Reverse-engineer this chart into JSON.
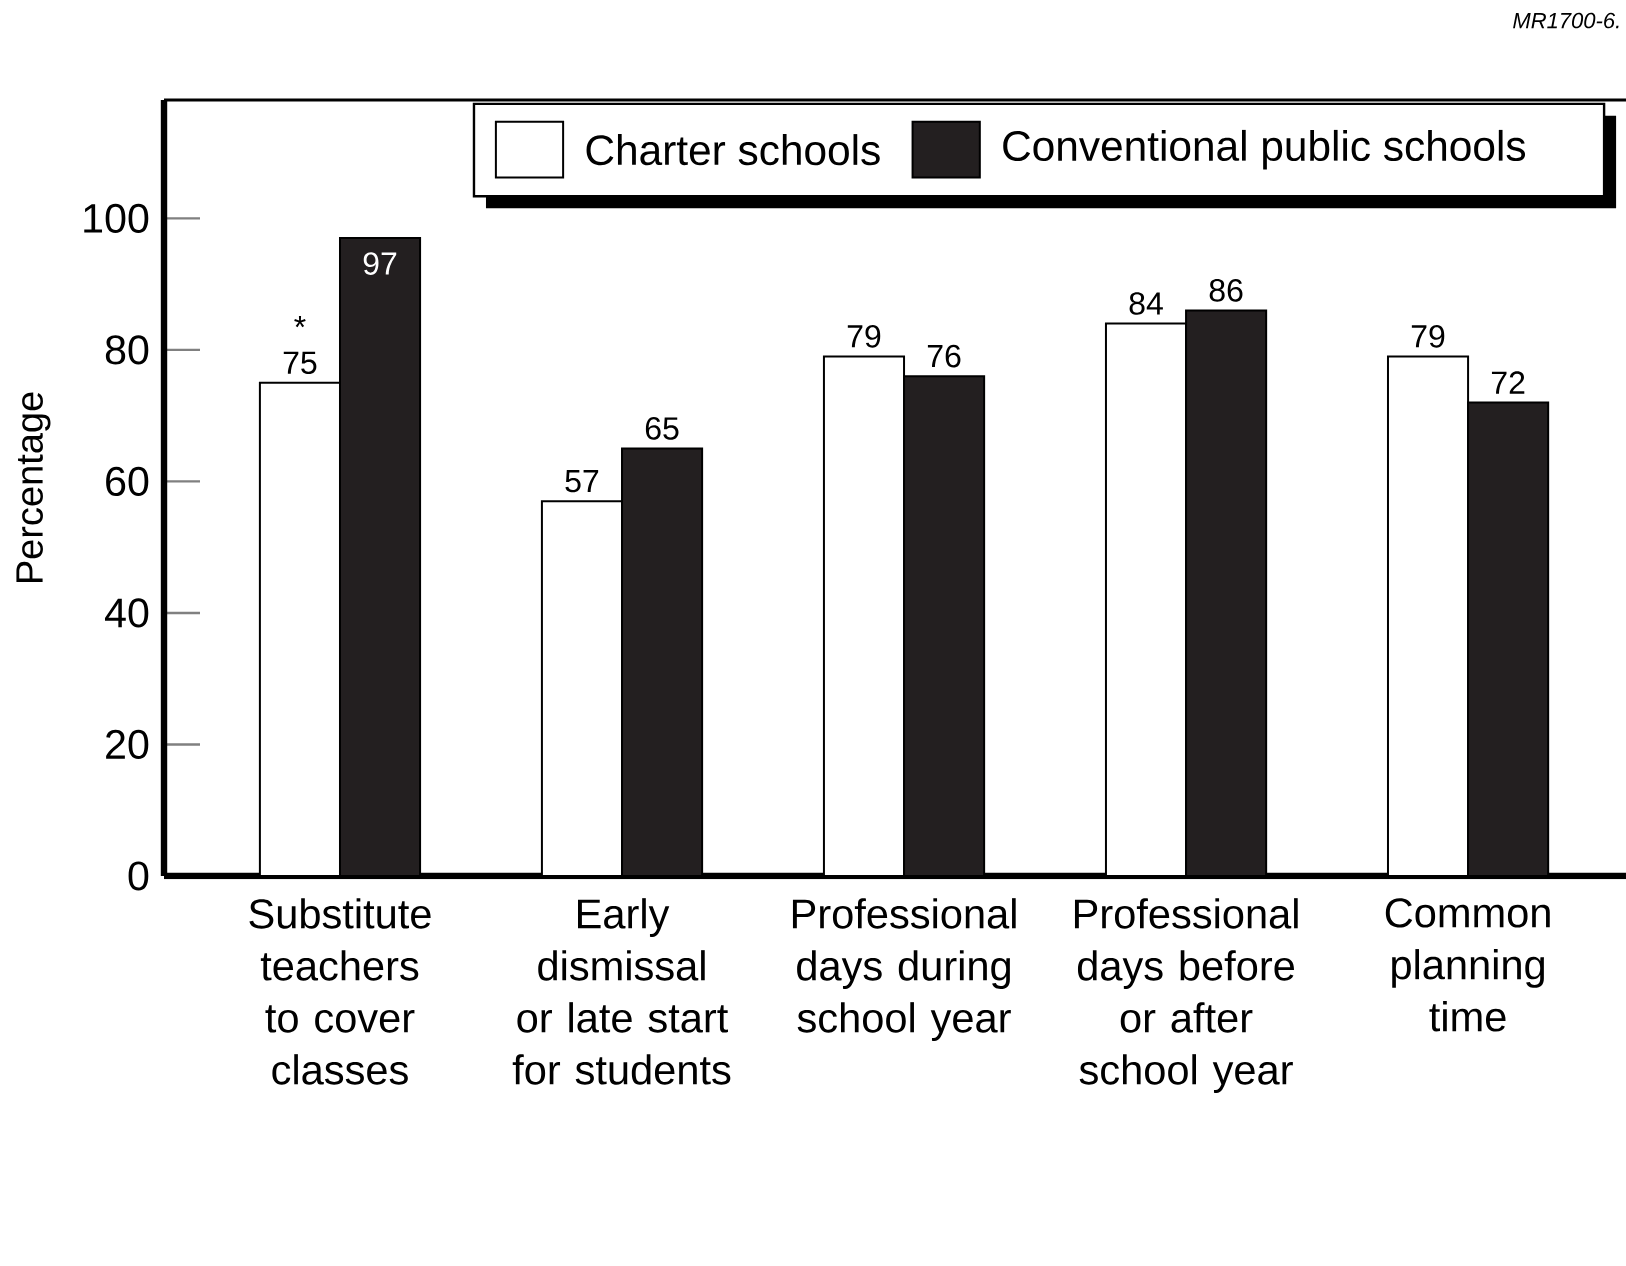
{
  "chart_data": {
    "type": "bar",
    "ylabel": "Percentage",
    "categories": [
      "Substitute teachers to cover classes",
      "Early dismissal or late start for students",
      "Professional days during school year",
      "Professional days before or after school year",
      "Common planning time"
    ],
    "series": [
      {
        "name": "Charter schools",
        "color": "#ffffff",
        "values": [
          75,
          57,
          79,
          84,
          79
        ]
      },
      {
        "name": "Conventional public schools",
        "color": "#231f20",
        "values": [
          97,
          65,
          76,
          86,
          72
        ]
      }
    ],
    "ylim": [
      0,
      118
    ],
    "yticks": [
      0,
      20,
      40,
      60,
      80,
      100
    ],
    "grid": false,
    "legend": "top right",
    "data_labels": true,
    "annotations": [
      "MR1700-6.",
      {
        "text": "*",
        "x": "Substitute teachers to cover classes",
        "y": 75
      }
    ]
  }
}
